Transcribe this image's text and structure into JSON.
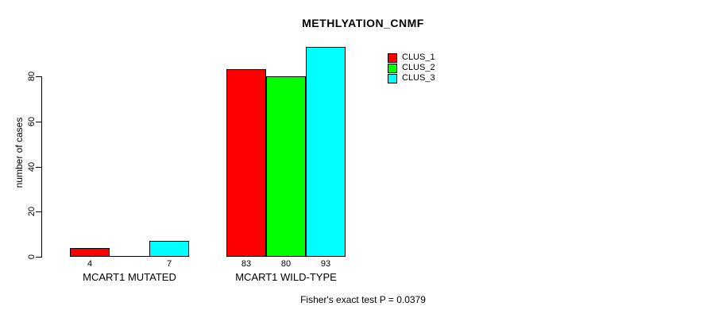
{
  "chart_data": {
    "type": "bar",
    "title": "METHLYATION_CNMF",
    "ylabel": "number of cases",
    "yticks": [
      0,
      20,
      40,
      60,
      80
    ],
    "ylim": [
      0,
      93
    ],
    "grid": false,
    "legend_position": "top-right",
    "categories": [
      "MCART1 MUTATED",
      "MCART1 WILD-TYPE"
    ],
    "series": [
      {
        "name": "CLUS_1",
        "color": "#ff0000",
        "values": [
          4,
          83
        ]
      },
      {
        "name": "CLUS_2",
        "color": "#00ff00",
        "values": [
          0,
          80
        ]
      },
      {
        "name": "CLUS_3",
        "color": "#00ffff",
        "values": [
          7,
          93
        ]
      }
    ],
    "bar_value_labels": [
      [
        "4",
        "",
        "7"
      ],
      [
        "83",
        "80",
        "93"
      ]
    ],
    "annotation": "Fisher's exact test P = 0.0379"
  },
  "colors": {
    "background": "#ffffff",
    "axis": "#000000",
    "text": "#000000"
  }
}
